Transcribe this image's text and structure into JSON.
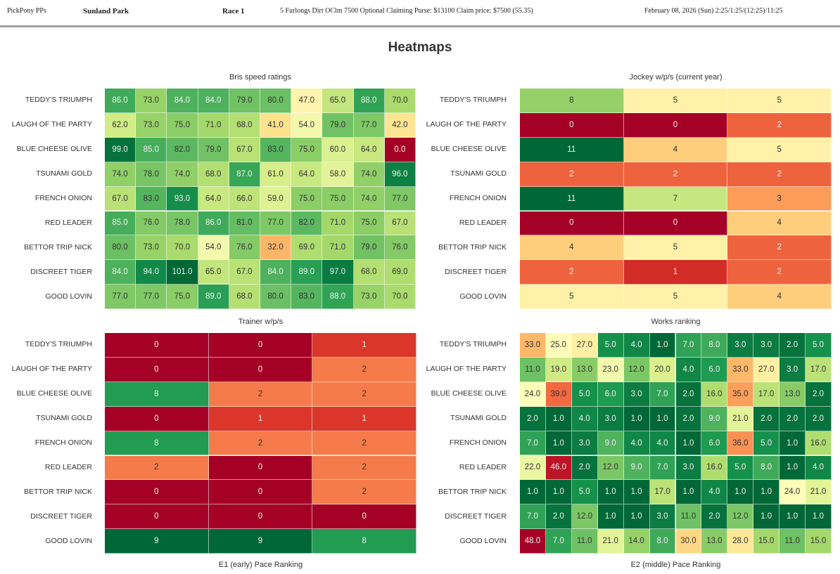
{
  "header": {
    "app": "PickPony PPs",
    "track": "Sunland Park",
    "race": "Race 1",
    "conditions": "5 Furlongs Dirt OClm 7500 Optional Claiming Purse: $13100 Claim price: $7500 (55.35)",
    "datetime": "February 08, 2026 (Sun) 2:25/1:25/(12:25)/11:25"
  },
  "page_title": "Heatmaps",
  "horses": [
    "TEDDY'S TRIUMPH",
    "LAUGH OF THE PARTY",
    "BLUE CHEESE OLIVE",
    "TSUNAMI GOLD",
    "FRENCH ONION",
    "RED LEADER",
    "BETTOR TRIP NICK",
    "DISCREET TIGER",
    "GOOD LOVIN"
  ],
  "chart_data": [
    {
      "type": "heatmap",
      "id": "speed",
      "title": "Bris speed ratings",
      "xlabel": "",
      "colormap": "RdYlGn",
      "reverse": false,
      "vmin": 0,
      "vmax": 101,
      "format": "1f",
      "rows": [
        "TEDDY'S TRIUMPH",
        "LAUGH OF THE PARTY",
        "BLUE CHEESE OLIVE",
        "TSUNAMI GOLD",
        "FRENCH ONION",
        "RED LEADER",
        "BETTOR TRIP NICK",
        "DISCREET TIGER",
        "GOOD LOVIN"
      ],
      "values": [
        [
          86,
          73,
          84,
          84,
          79,
          80,
          47,
          65,
          88,
          70
        ],
        [
          62,
          73,
          75,
          71,
          68,
          41,
          54,
          79,
          77,
          42
        ],
        [
          99,
          85,
          82,
          79,
          67,
          83,
          75,
          60,
          64,
          0
        ],
        [
          74,
          78,
          74,
          68,
          87,
          61,
          64,
          58,
          74,
          96
        ],
        [
          67,
          83,
          93,
          64,
          66,
          59,
          75,
          75,
          74,
          77
        ],
        [
          85,
          76,
          78,
          86,
          81,
          77,
          82,
          71,
          75,
          67
        ],
        [
          80,
          73,
          70,
          54,
          76,
          32,
          69,
          71,
          79,
          76
        ],
        [
          84,
          94,
          101,
          65,
          67,
          84,
          89,
          97,
          68,
          69
        ],
        [
          77,
          77,
          75,
          89,
          68,
          80,
          83,
          88,
          73,
          70
        ]
      ]
    },
    {
      "type": "heatmap",
      "id": "jockey",
      "title": "Jockey w/p/s (current year)",
      "xlabel": "",
      "colormap": "RdYlGn",
      "reverse": false,
      "vmin": 0,
      "vmax": 11,
      "format": "d",
      "rows": [
        "TEDDY'S TRIUMPH",
        "LAUGH OF THE PARTY",
        "BLUE CHEESE OLIVE",
        "TSUNAMI GOLD",
        "FRENCH ONION",
        "RED LEADER",
        "BETTOR TRIP NICK",
        "DISCREET TIGER",
        "GOOD LOVIN"
      ],
      "values": [
        [
          8,
          5,
          5
        ],
        [
          0,
          0,
          2
        ],
        [
          11,
          4,
          5
        ],
        [
          2,
          2,
          2
        ],
        [
          11,
          7,
          3
        ],
        [
          0,
          0,
          4
        ],
        [
          4,
          5,
          2
        ],
        [
          2,
          1,
          2
        ],
        [
          5,
          5,
          4
        ]
      ]
    },
    {
      "type": "heatmap",
      "id": "trainer",
      "title": "Trainer w/p/s",
      "xlabel": "E1 (early) Pace Ranking",
      "colormap": "RdYlGn",
      "reverse": false,
      "vmin": 0,
      "vmax": 9,
      "format": "d",
      "rows": [
        "TEDDY'S TRIUMPH",
        "LAUGH OF THE PARTY",
        "BLUE CHEESE OLIVE",
        "TSUNAMI GOLD",
        "FRENCH ONION",
        "RED LEADER",
        "BETTOR TRIP NICK",
        "DISCREET TIGER",
        "GOOD LOVIN"
      ],
      "values": [
        [
          0,
          0,
          1
        ],
        [
          0,
          0,
          2
        ],
        [
          8,
          2,
          2
        ],
        [
          0,
          1,
          1
        ],
        [
          8,
          2,
          2
        ],
        [
          2,
          0,
          2
        ],
        [
          0,
          0,
          2
        ],
        [
          0,
          0,
          0
        ],
        [
          9,
          9,
          8
        ]
      ]
    },
    {
      "type": "heatmap",
      "id": "works",
      "title": "Works ranking",
      "xlabel": "E2 (middle) Pace Ranking",
      "colormap": "RdYlGn_r",
      "reverse": true,
      "vmin": 1,
      "vmax": 48,
      "format": "1f",
      "rows": [
        "TEDDY'S TRIUMPH",
        "LAUGH OF THE PARTY",
        "BLUE CHEESE OLIVE",
        "TSUNAMI GOLD",
        "FRENCH ONION",
        "RED LEADER",
        "BETTOR TRIP NICK",
        "DISCREET TIGER",
        "GOOD LOVIN"
      ],
      "values": [
        [
          33,
          25,
          27,
          5,
          4,
          1,
          7,
          8,
          3,
          3,
          2,
          5
        ],
        [
          11,
          19,
          13,
          23,
          12,
          20,
          4,
          6,
          33,
          27,
          3,
          17
        ],
        [
          24,
          39,
          5,
          6,
          3,
          7,
          2,
          16,
          35,
          17,
          13,
          2
        ],
        [
          2,
          1,
          4,
          3,
          1,
          1,
          2,
          9,
          21,
          2,
          2,
          2
        ],
        [
          7,
          1,
          3,
          9,
          4,
          4,
          1,
          6,
          36,
          5,
          1,
          16
        ],
        [
          22,
          46,
          2,
          12,
          9,
          7,
          3,
          16,
          5,
          8,
          1,
          4
        ],
        [
          1,
          1,
          5,
          1,
          1,
          17,
          1,
          4,
          1,
          1,
          24,
          21
        ],
        [
          7,
          2,
          12,
          1,
          1,
          3,
          11,
          2,
          12,
          1,
          1,
          1
        ],
        [
          48,
          7,
          11,
          21,
          14,
          8,
          30,
          13,
          28,
          15,
          11,
          15
        ]
      ]
    }
  ]
}
